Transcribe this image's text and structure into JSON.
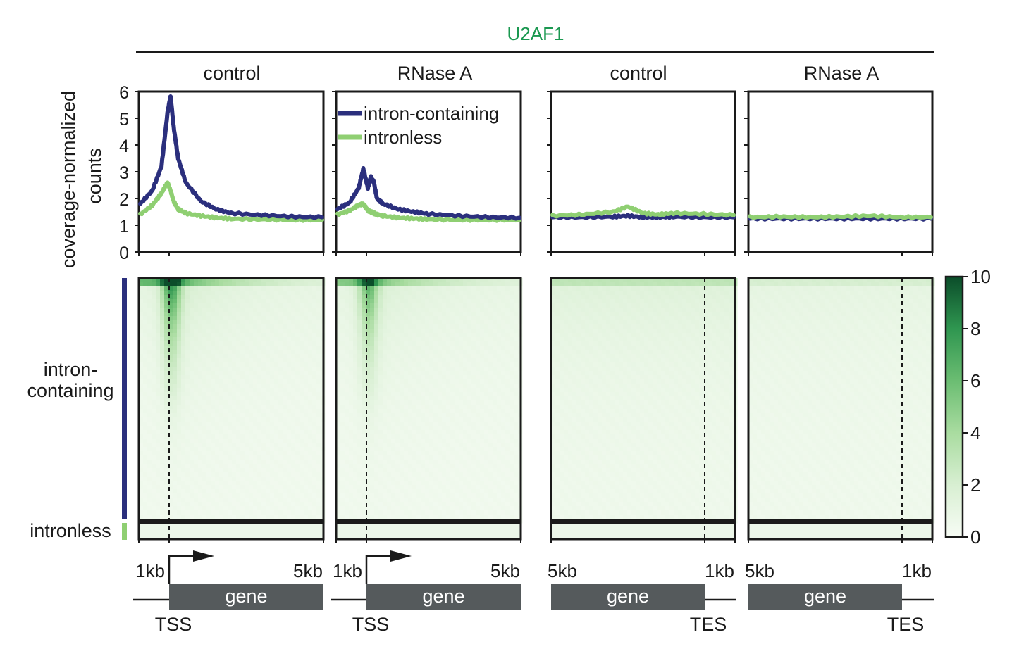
{
  "figure": {
    "protein": "U2AF1",
    "accent_color": "#1a9850",
    "panels": [
      {
        "condition": "control",
        "anchor": "TSS",
        "left_label": "1kb",
        "right_label": "5kb",
        "gene_label": "gene"
      },
      {
        "condition": "RNase A",
        "anchor": "TSS",
        "left_label": "1kb",
        "right_label": "5kb",
        "gene_label": "gene"
      },
      {
        "condition": "control",
        "anchor": "TES",
        "left_label": "5kb",
        "right_label": "1kb",
        "gene_label": "gene"
      },
      {
        "condition": "RNase A",
        "anchor": "TES",
        "left_label": "5kb",
        "right_label": "1kb",
        "gene_label": "gene"
      }
    ],
    "row_labels": {
      "intron_line1": "intron-",
      "intron_line2": "containing",
      "intronless": "intronless"
    }
  },
  "chart_data": [
    {
      "type": "line",
      "panel": "control (TSS)",
      "ylabel_line1": "coverage-normalized",
      "ylabel_line2": "counts",
      "ylim": [
        0,
        6
      ],
      "yticks": [
        "0",
        "1",
        "2",
        "3",
        "4",
        "5",
        "6"
      ],
      "legend": "none",
      "x": [
        -1,
        -0.6,
        -0.3,
        -0.1,
        0,
        0.1,
        0.25,
        0.5,
        1,
        1.5,
        2,
        3,
        4,
        5
      ],
      "series": [
        {
          "name": "intron-containing",
          "color": "#2b2f7d",
          "values": [
            1.8,
            2.3,
            3.2,
            5.2,
            5.85,
            4.7,
            3.5,
            2.6,
            1.9,
            1.6,
            1.45,
            1.38,
            1.32,
            1.3
          ]
        },
        {
          "name": "intronless",
          "color": "#8fcf72",
          "values": [
            1.4,
            1.75,
            2.2,
            2.6,
            2.3,
            1.9,
            1.6,
            1.45,
            1.35,
            1.28,
            1.24,
            1.22,
            1.2,
            1.2
          ]
        }
      ]
    },
    {
      "type": "line",
      "panel": "RNase A (TSS)",
      "ylim": [
        0,
        6
      ],
      "legend": "top-left",
      "x": [
        -1,
        -0.6,
        -0.3,
        -0.15,
        0,
        0.1,
        0.2,
        0.3,
        0.5,
        1,
        1.5,
        2,
        3,
        4,
        5
      ],
      "series": [
        {
          "name": "intron-containing",
          "color": "#2b2f7d",
          "values": [
            1.6,
            1.85,
            2.4,
            3.1,
            2.4,
            2.8,
            2.6,
            2.0,
            1.8,
            1.6,
            1.5,
            1.42,
            1.35,
            1.3,
            1.28
          ]
        },
        {
          "name": "intronless",
          "color": "#8fcf72",
          "values": [
            1.4,
            1.55,
            1.75,
            1.8,
            1.55,
            1.5,
            1.45,
            1.4,
            1.35,
            1.28,
            1.25,
            1.22,
            1.2,
            1.2,
            1.2
          ]
        }
      ]
    },
    {
      "type": "line",
      "panel": "control (TES)",
      "ylim": [
        0,
        6
      ],
      "legend": "none",
      "x": [
        -5,
        -4,
        -3,
        -2.5,
        -2,
        -1.5,
        -1,
        0,
        1
      ],
      "series": [
        {
          "name": "intron-containing",
          "color": "#2b2f7d",
          "values": [
            1.3,
            1.3,
            1.32,
            1.35,
            1.3,
            1.3,
            1.32,
            1.3,
            1.3
          ]
        },
        {
          "name": "intronless",
          "color": "#8fcf72",
          "values": [
            1.35,
            1.4,
            1.5,
            1.7,
            1.45,
            1.4,
            1.45,
            1.42,
            1.38
          ]
        }
      ]
    },
    {
      "type": "line",
      "panel": "RNase A (TES)",
      "ylim": [
        0,
        6
      ],
      "legend": "none",
      "x": [
        -5,
        -4,
        -3,
        -2,
        -1,
        0,
        1
      ],
      "series": [
        {
          "name": "intron-containing",
          "color": "#2b2f7d",
          "values": [
            1.25,
            1.25,
            1.25,
            1.25,
            1.25,
            1.25,
            1.25
          ]
        },
        {
          "name": "intronless",
          "color": "#8fcf72",
          "values": [
            1.3,
            1.32,
            1.3,
            1.32,
            1.35,
            1.3,
            1.3
          ]
        }
      ]
    },
    {
      "type": "heatmap",
      "colorbar": {
        "min": 0,
        "max": 10,
        "ticks": [
          "0",
          "2",
          "4",
          "6",
          "8",
          "10"
        ]
      },
      "rows": [
        "intron-containing",
        "intronless"
      ],
      "panels": [
        "control (TSS)",
        "RNase A (TSS)",
        "control (TES)",
        "RNase A (TES)"
      ],
      "peak_intensity": [
        10,
        8,
        2.5,
        1.5
      ]
    }
  ]
}
